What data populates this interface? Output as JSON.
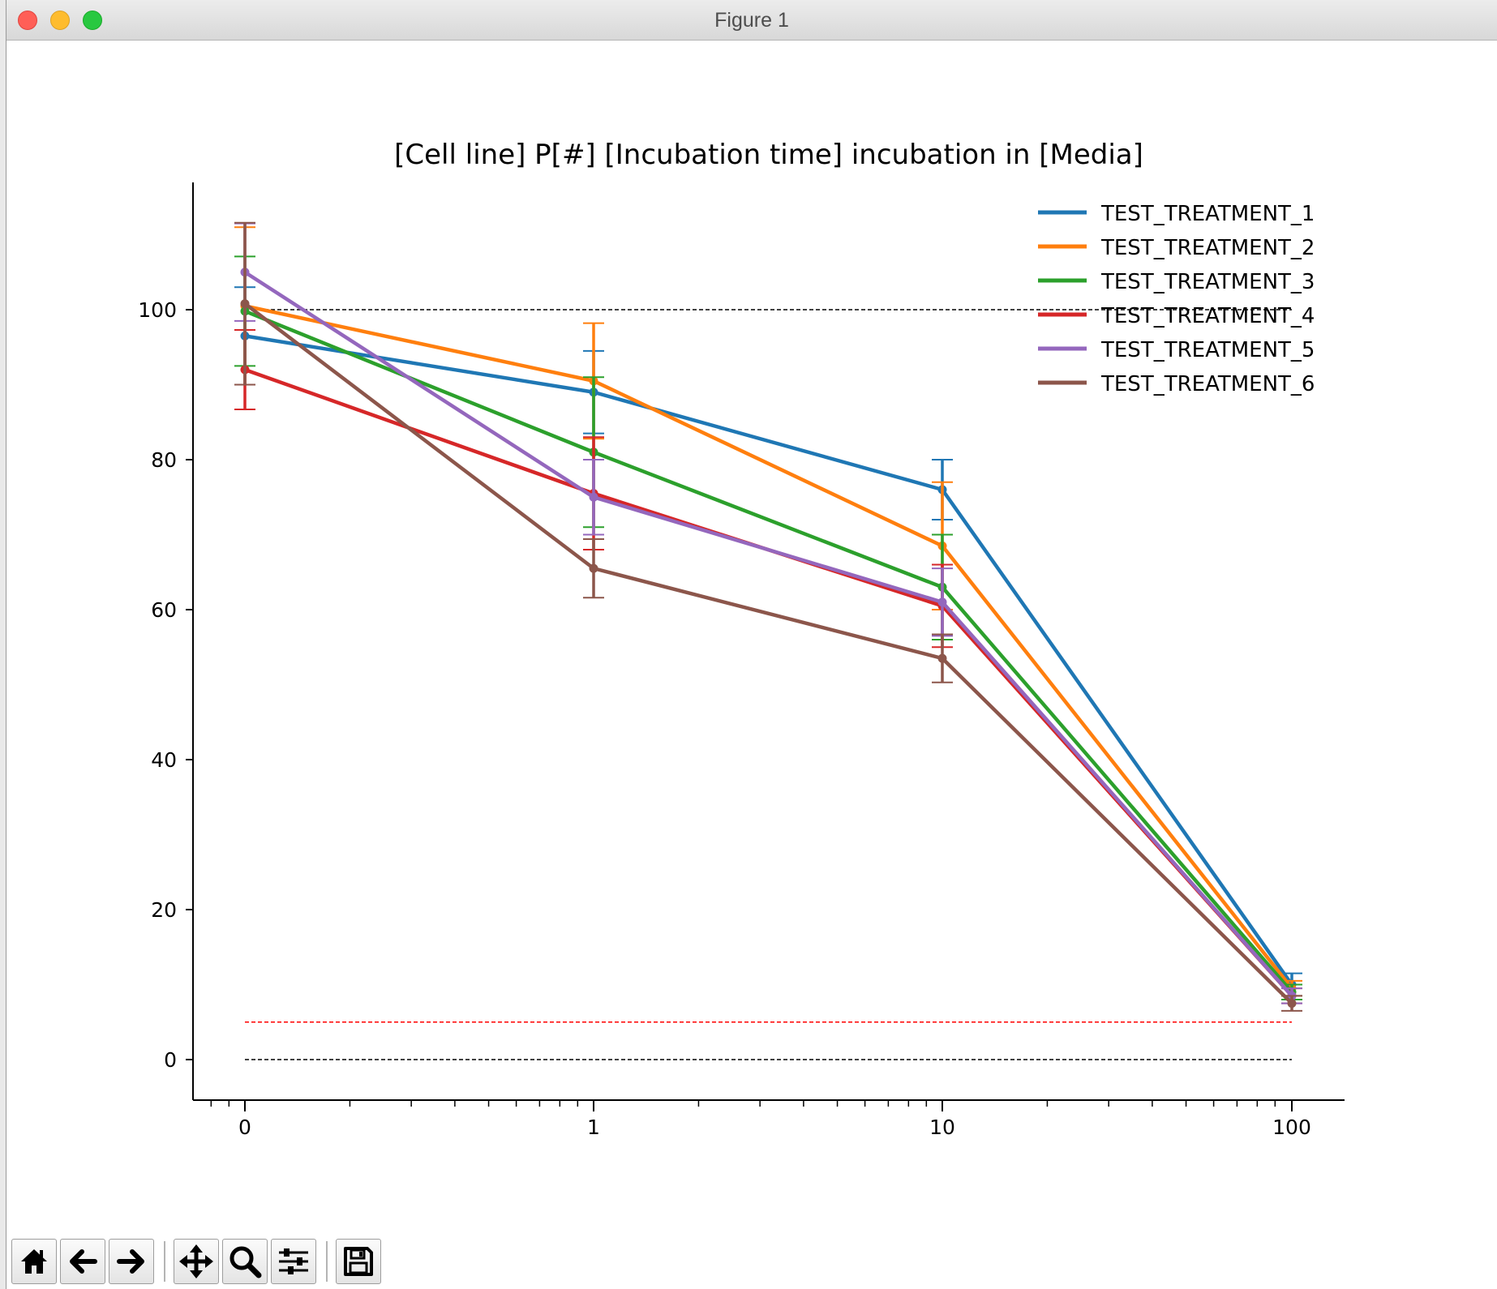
{
  "window": {
    "title": "Figure 1"
  },
  "toolbar": {
    "buttons": [
      {
        "name": "home-button",
        "icon": "home-icon"
      },
      {
        "name": "back-button",
        "icon": "arrow-left-icon"
      },
      {
        "name": "forward-button",
        "icon": "arrow-right-icon"
      },
      {
        "name": "pan-button",
        "icon": "move-icon"
      },
      {
        "name": "zoom-button",
        "icon": "magnifier-icon"
      },
      {
        "name": "configure-subplots-button",
        "icon": "sliders-icon"
      },
      {
        "name": "save-button",
        "icon": "floppy-disk-icon"
      }
    ]
  },
  "chart_data": {
    "type": "line",
    "title": "[Cell line] P[#] [Incubation time] incubation in [Media]",
    "xlabel": "",
    "ylabel": "",
    "x_scale": "log",
    "x": [
      0,
      1,
      10,
      100
    ],
    "x_tick_labels": [
      "0",
      "1",
      "10",
      "100"
    ],
    "y_ticks": [
      0,
      20,
      40,
      60,
      80,
      100
    ],
    "ylim": [
      -5.5,
      117
    ],
    "grid": false,
    "legend_position": "top-right",
    "reference_lines": [
      {
        "y": 100,
        "color": "#000000",
        "style": "dashed"
      },
      {
        "y": 5,
        "color": "#ff0000",
        "style": "dashed"
      },
      {
        "y": 0,
        "color": "#000000",
        "style": "dashed"
      }
    ],
    "series": [
      {
        "name": "TEST_TREATMENT_1",
        "color": "#1f77b4",
        "values": [
          96.5,
          89,
          76,
          10
        ],
        "errors": [
          6.5,
          5.5,
          4,
          1.5
        ]
      },
      {
        "name": "TEST_TREATMENT_2",
        "color": "#ff7f0e",
        "values": [
          100.5,
          90.5,
          68.5,
          9.5
        ],
        "errors": [
          10.5,
          7.7,
          8.5,
          1
        ]
      },
      {
        "name": "TEST_TREATMENT_3",
        "color": "#2ca02c",
        "values": [
          99.8,
          81,
          63,
          9
        ],
        "errors": [
          7.3,
          10,
          7,
          1
        ]
      },
      {
        "name": "TEST_TREATMENT_4",
        "color": "#d62728",
        "values": [
          92,
          75.5,
          60.5,
          8.5
        ],
        "errors": [
          5.3,
          7.5,
          5.5,
          1
        ]
      },
      {
        "name": "TEST_TREATMENT_5",
        "color": "#9467bd",
        "values": [
          105,
          75,
          61,
          8.5
        ],
        "errors": [
          6.5,
          5,
          4.5,
          1
        ]
      },
      {
        "name": "TEST_TREATMENT_6",
        "color": "#8c564b",
        "values": [
          100.8,
          65.5,
          53.5,
          7.5
        ],
        "errors": [
          10.8,
          3.9,
          3.2,
          1
        ]
      }
    ]
  }
}
